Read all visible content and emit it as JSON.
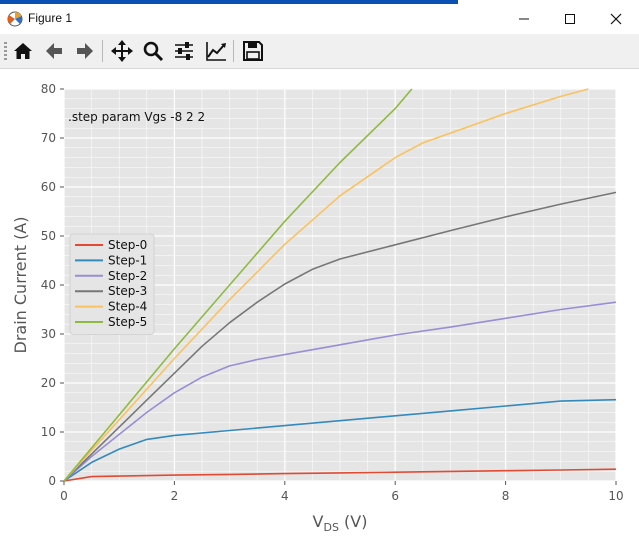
{
  "window": {
    "title": "Figure 1",
    "controls": {
      "minimize": "minimize",
      "maximize": "maximize",
      "close": "close"
    }
  },
  "toolbar": {
    "buttons": [
      {
        "name": "home-button",
        "icon": "home-icon"
      },
      {
        "name": "back-button",
        "icon": "arrow-left-icon"
      },
      {
        "name": "forward-button",
        "icon": "arrow-right-icon"
      },
      {
        "name": "pan-button",
        "icon": "move-arrows-icon"
      },
      {
        "name": "zoom-button",
        "icon": "magnifier-icon"
      },
      {
        "name": "configure-subplots-button",
        "icon": "sliders-icon"
      },
      {
        "name": "edit-axis-button",
        "icon": "line-chart-icon"
      },
      {
        "name": "save-button",
        "icon": "floppy-disk-icon"
      }
    ]
  },
  "chart_data": {
    "type": "line",
    "annotation": ".step param Vgs -8 2 2",
    "xlabel_main": "V",
    "xlabel_sub": "DS",
    "xlabel_unit": " (V)",
    "ylabel": "Drain Current (A)",
    "xlim": [
      0,
      10
    ],
    "ylim": [
      0,
      80
    ],
    "xticks": [
      0,
      2,
      4,
      6,
      8,
      10
    ],
    "yticks": [
      0,
      10,
      20,
      30,
      40,
      50,
      60,
      70,
      80
    ],
    "grid": true,
    "legend_position": "center-left",
    "colors": {
      "Step-0": "#e24a33",
      "Step-1": "#348abd",
      "Step-2": "#988ed5",
      "Step-3": "#777777",
      "Step-4": "#fbc15e",
      "Step-5": "#8eba42"
    },
    "series": [
      {
        "name": "Step-0",
        "x": [
          0,
          0.5,
          1,
          2,
          3,
          4,
          5,
          6,
          7,
          8,
          9,
          10
        ],
        "y": [
          0,
          0.9,
          1.0,
          1.2,
          1.35,
          1.5,
          1.65,
          1.8,
          1.95,
          2.1,
          2.25,
          2.4
        ]
      },
      {
        "name": "Step-1",
        "x": [
          0,
          0.5,
          1,
          1.5,
          2,
          3,
          4,
          5,
          6,
          7,
          8,
          9,
          10
        ],
        "y": [
          0,
          3.8,
          6.5,
          8.5,
          9.3,
          10.3,
          11.3,
          12.3,
          13.3,
          14.3,
          15.3,
          16.3,
          16.6
        ]
      },
      {
        "name": "Step-2",
        "x": [
          0,
          0.5,
          1,
          1.5,
          2,
          2.5,
          3,
          3.5,
          4,
          5,
          6,
          7,
          8,
          9,
          10
        ],
        "y": [
          0,
          5,
          9.5,
          14,
          18,
          21.2,
          23.5,
          24.8,
          25.8,
          27.8,
          29.8,
          31.4,
          33.2,
          35,
          36.5
        ]
      },
      {
        "name": "Step-3",
        "x": [
          0,
          0.5,
          1,
          1.5,
          2,
          2.5,
          3,
          3.5,
          4,
          4.5,
          5,
          6,
          7,
          8,
          9,
          10
        ],
        "y": [
          0,
          5.5,
          11,
          16.5,
          22,
          27.5,
          32.3,
          36.5,
          40.2,
          43.2,
          45.3,
          48.2,
          51.1,
          53.9,
          56.5,
          58.9
        ]
      },
      {
        "name": "Step-4",
        "x": [
          0,
          1,
          2,
          3,
          4,
          5,
          6,
          6.5,
          7,
          8,
          9,
          9.5
        ],
        "y": [
          0,
          12.5,
          25,
          37,
          48.3,
          58.2,
          66,
          69,
          71,
          75,
          78.5,
          80
        ]
      },
      {
        "name": "Step-5",
        "x": [
          0,
          1,
          2,
          3,
          4,
          5,
          6,
          6.3
        ],
        "y": [
          0,
          13.5,
          27,
          40,
          53,
          65,
          76,
          80
        ]
      }
    ]
  }
}
